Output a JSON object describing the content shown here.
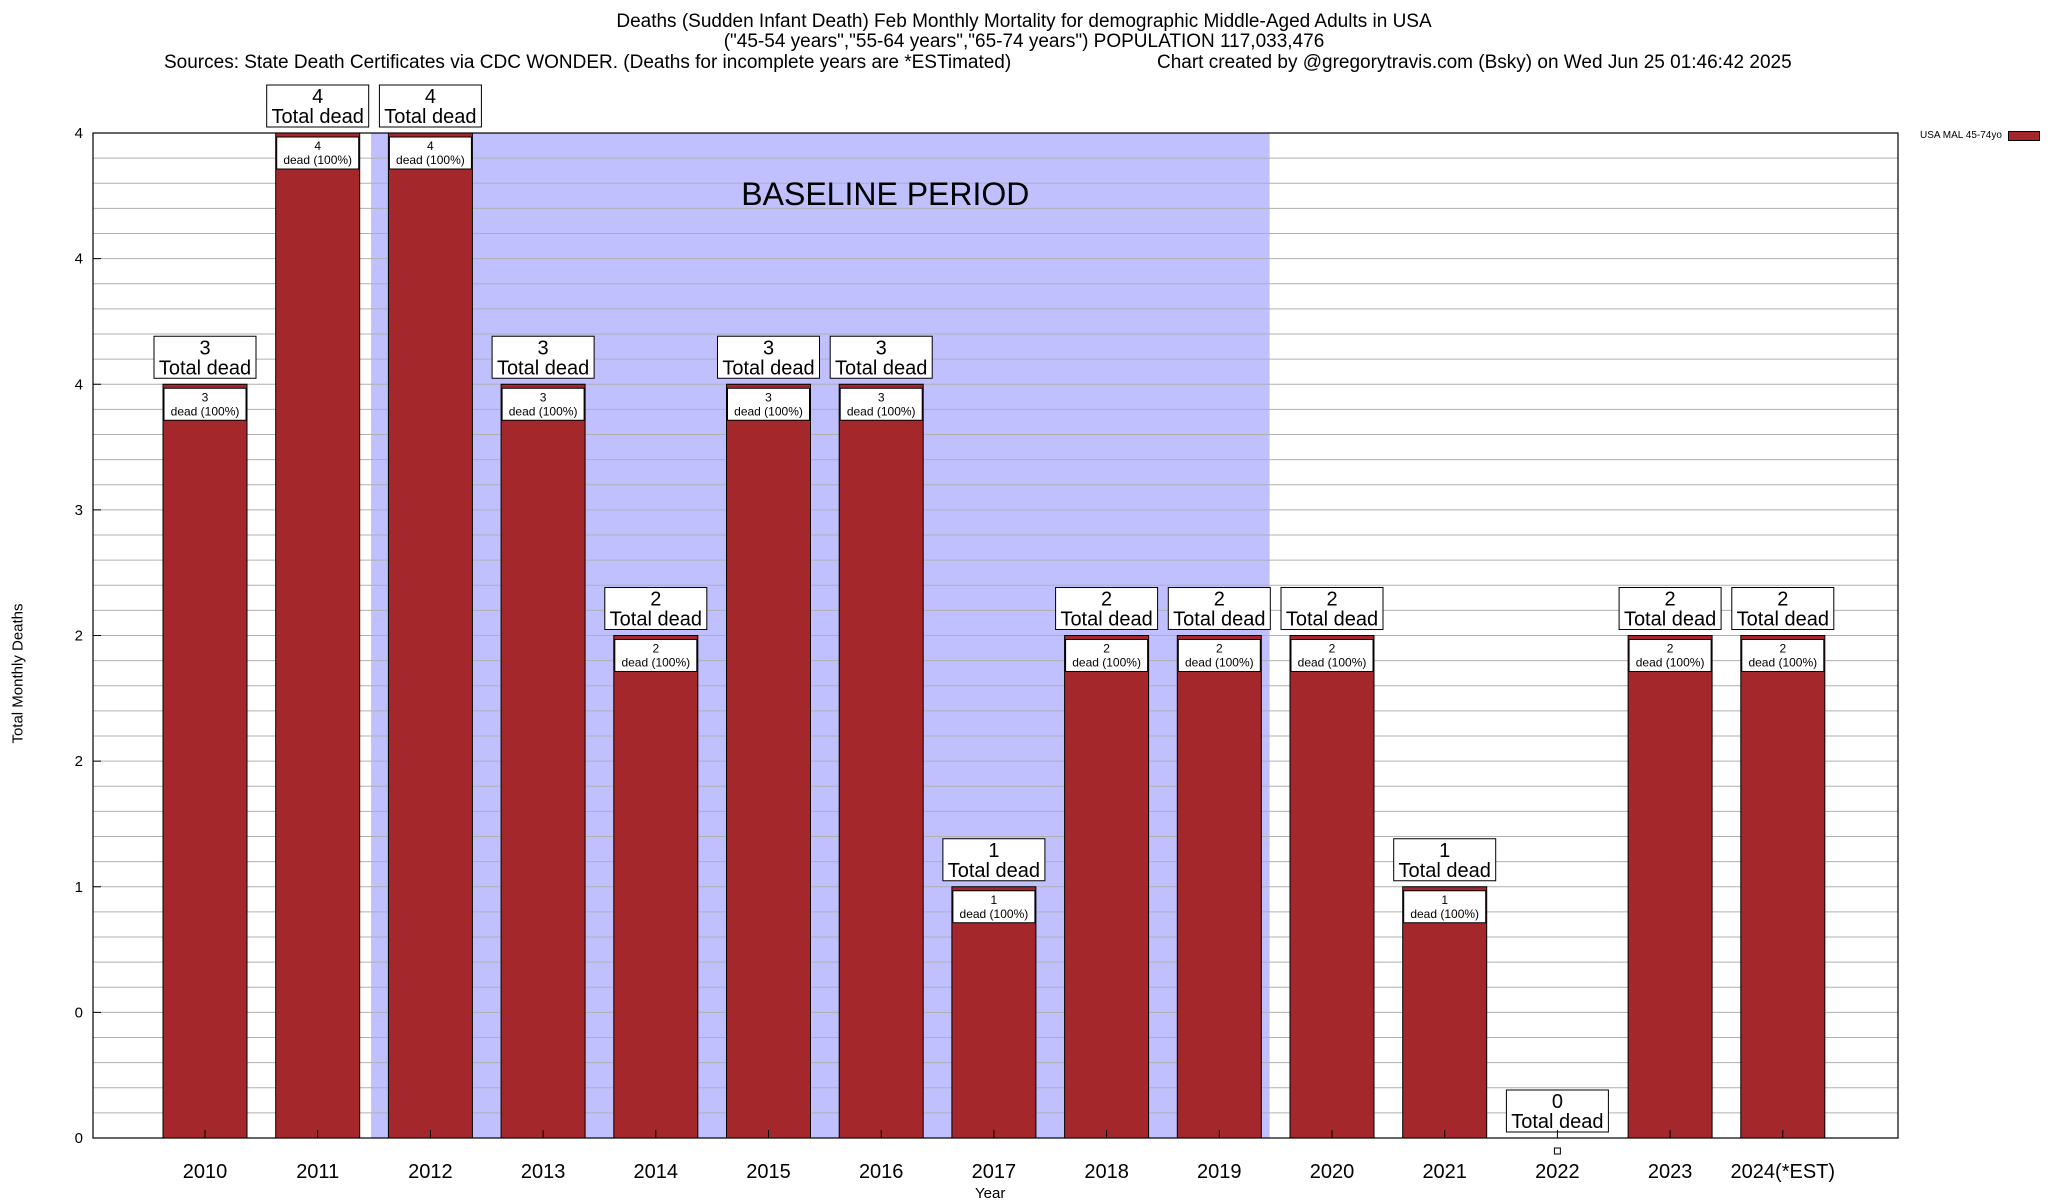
{
  "chart_data": {
    "type": "bar",
    "title_lines": [
      "Deaths (Sudden Infant Death) Feb Monthly Mortality for demographic Middle-Aged Adults in USA",
      "(\"45-54 years\",\"55-64 years\",\"65-74 years\") POPULATION 117,033,476"
    ],
    "sources": "Sources: State Death Certificates via CDC WONDER. (Deaths for incomplete years are *ESTimated)",
    "credit": "Chart created by @gregorytravis.com (Bsky) on Wed Jun 25 01:46:42 2025",
    "xlabel": "Year",
    "ylabel": "Total Monthly Deaths",
    "categories": [
      "2010",
      "2011",
      "2012",
      "2013",
      "2014",
      "2015",
      "2016",
      "2017",
      "2018",
      "2019",
      "2020",
      "2021",
      "2022",
      "2023",
      "2024(*EST)"
    ],
    "series": [
      {
        "name": "USA MAL 45-74yo",
        "color": "#a4282b",
        "values": [
          3,
          4,
          4,
          3,
          2,
          3,
          3,
          1,
          2,
          2,
          2,
          1,
          0,
          2,
          2
        ]
      }
    ],
    "total_label_text": "Total dead",
    "inner_label_text": "dead (100%)",
    "ylim": [
      0,
      4
    ],
    "ytick_labels": [
      "0",
      "0",
      "1",
      "2",
      "2",
      "3",
      "4",
      "4"
    ],
    "baseline": {
      "label": "BASELINE PERIOD",
      "start_category": "2012",
      "end_category": "2019",
      "color": "#c0c0ff"
    },
    "grid": true,
    "legend_position": "top-right"
  }
}
